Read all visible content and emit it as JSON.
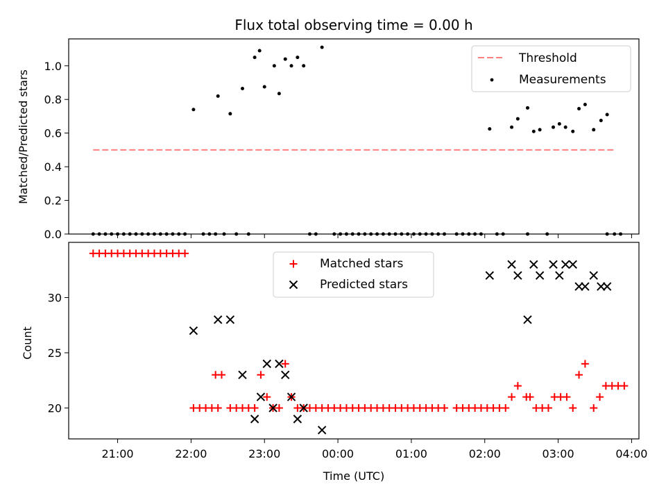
{
  "chart_data": [
    {
      "type": "scatter",
      "title": "Flux total observing time = 0.00 h",
      "ylabel": "Matched/Predicted stars",
      "xlabel": "",
      "ylim": [
        0,
        1.16
      ],
      "yticks": [
        "0.0",
        "0.2",
        "0.4",
        "0.6",
        "0.8",
        "1.0"
      ],
      "xlim": [
        "20:20",
        "04:06"
      ],
      "legend": {
        "position": "top-right",
        "entries": [
          "Threshold",
          "Measurements"
        ]
      },
      "threshold": {
        "name": "Threshold",
        "value": 0.5,
        "x_start": "20:40",
        "x_end": "03:46",
        "color": "#ff7f7f",
        "style": "dashed"
      },
      "series": [
        {
          "name": "Measurements",
          "color": "#000000",
          "marker": "dot",
          "points": [
            [
              "20:40",
              0
            ],
            [
              "20:45",
              0
            ],
            [
              "20:50",
              0
            ],
            [
              "20:55",
              0
            ],
            [
              "21:00",
              0
            ],
            [
              "21:05",
              0
            ],
            [
              "21:10",
              0
            ],
            [
              "21:15",
              0
            ],
            [
              "21:20",
              0
            ],
            [
              "21:25",
              0
            ],
            [
              "21:30",
              0
            ],
            [
              "21:35",
              0
            ],
            [
              "21:40",
              0
            ],
            [
              "21:45",
              0
            ],
            [
              "21:50",
              0
            ],
            [
              "21:55",
              0
            ],
            [
              "22:02",
              0.74
            ],
            [
              "22:10",
              0
            ],
            [
              "22:15",
              0
            ],
            [
              "22:20",
              0
            ],
            [
              "22:22",
              0.82
            ],
            [
              "22:27",
              0
            ],
            [
              "22:32",
              0.715
            ],
            [
              "22:37",
              0
            ],
            [
              "22:42",
              0.865
            ],
            [
              "22:47",
              0
            ],
            [
              "22:52",
              1.05
            ],
            [
              "22:56",
              1.09
            ],
            [
              "23:00",
              0.875
            ],
            [
              "23:08",
              1.0
            ],
            [
              "23:12",
              0.835
            ],
            [
              "23:17",
              1.04
            ],
            [
              "23:22",
              1.0
            ],
            [
              "23:27",
              1.05
            ],
            [
              "23:32",
              1.0
            ],
            [
              "23:37",
              0
            ],
            [
              "23:42",
              0
            ],
            [
              "23:47",
              1.11
            ],
            [
              "23:57",
              0
            ],
            [
              "00:02",
              0
            ],
            [
              "00:07",
              0
            ],
            [
              "00:12",
              0
            ],
            [
              "00:17",
              0
            ],
            [
              "00:22",
              0
            ],
            [
              "00:27",
              0
            ],
            [
              "00:32",
              0
            ],
            [
              "00:37",
              0
            ],
            [
              "00:42",
              0
            ],
            [
              "00:47",
              0
            ],
            [
              "00:52",
              0
            ],
            [
              "00:57",
              0
            ],
            [
              "01:02",
              0
            ],
            [
              "01:07",
              0
            ],
            [
              "01:12",
              0
            ],
            [
              "01:17",
              0
            ],
            [
              "01:22",
              0
            ],
            [
              "01:27",
              0
            ],
            [
              "01:37",
              0
            ],
            [
              "01:42",
              0
            ],
            [
              "01:47",
              0
            ],
            [
              "01:52",
              0
            ],
            [
              "01:57",
              0
            ],
            [
              "02:04",
              0.625
            ],
            [
              "02:10",
              0
            ],
            [
              "02:15",
              0
            ],
            [
              "02:22",
              0.635
            ],
            [
              "02:27",
              0.685
            ],
            [
              "02:35",
              0.75
            ],
            [
              "02:35",
              0
            ],
            [
              "02:40",
              0.61
            ],
            [
              "02:45",
              0.62
            ],
            [
              "02:51",
              0
            ],
            [
              "02:56",
              0.635
            ],
            [
              "03:01",
              0.655
            ],
            [
              "03:06",
              0.635
            ],
            [
              "03:12",
              0.61
            ],
            [
              "03:17",
              0.745
            ],
            [
              "03:22",
              0.77
            ],
            [
              "03:29",
              0.62
            ],
            [
              "03:35",
              0.675
            ],
            [
              "03:40",
              0.71
            ],
            [
              "03:40",
              0
            ],
            [
              "03:46",
              0
            ],
            [
              "03:51",
              0
            ]
          ]
        }
      ]
    },
    {
      "type": "scatter",
      "title": "",
      "ylabel": "Count",
      "xlabel": "Time (UTC)",
      "ylim": [
        17.2,
        35
      ],
      "yticks": [
        "20",
        "25",
        "30"
      ],
      "xlim": [
        "20:20",
        "04:06"
      ],
      "xticks": [
        "21:00",
        "22:00",
        "23:00",
        "00:00",
        "01:00",
        "02:00",
        "03:00",
        "04:00"
      ],
      "legend": {
        "position": "top-center",
        "entries": [
          "Matched stars",
          "Predicted stars"
        ]
      },
      "series": [
        {
          "name": "Matched stars",
          "color": "#ff0000",
          "marker": "plus",
          "points": [
            [
              "20:40",
              34
            ],
            [
              "20:45",
              34
            ],
            [
              "20:50",
              34
            ],
            [
              "20:55",
              34
            ],
            [
              "21:00",
              34
            ],
            [
              "21:05",
              34
            ],
            [
              "21:10",
              34
            ],
            [
              "21:15",
              34
            ],
            [
              "21:20",
              34
            ],
            [
              "21:25",
              34
            ],
            [
              "21:30",
              34
            ],
            [
              "21:35",
              34
            ],
            [
              "21:40",
              34
            ],
            [
              "21:45",
              34
            ],
            [
              "21:50",
              34
            ],
            [
              "21:55",
              34
            ],
            [
              "22:02",
              20
            ],
            [
              "22:07",
              20
            ],
            [
              "22:12",
              20
            ],
            [
              "22:17",
              20
            ],
            [
              "22:22",
              20
            ],
            [
              "22:20",
              23
            ],
            [
              "22:25",
              23
            ],
            [
              "22:32",
              20
            ],
            [
              "22:37",
              20
            ],
            [
              "22:42",
              20
            ],
            [
              "22:47",
              20
            ],
            [
              "22:52",
              20
            ],
            [
              "22:57",
              23
            ],
            [
              "23:02",
              21
            ],
            [
              "23:07",
              20
            ],
            [
              "23:12",
              20
            ],
            [
              "23:17",
              24
            ],
            [
              "23:22",
              21
            ],
            [
              "23:27",
              20
            ],
            [
              "23:32",
              20
            ],
            [
              "23:37",
              20
            ],
            [
              "23:42",
              20
            ],
            [
              "23:47",
              20
            ],
            [
              "23:52",
              20
            ],
            [
              "23:57",
              20
            ],
            [
              "00:02",
              20
            ],
            [
              "00:07",
              20
            ],
            [
              "00:12",
              20
            ],
            [
              "00:17",
              20
            ],
            [
              "00:22",
              20
            ],
            [
              "00:27",
              20
            ],
            [
              "00:32",
              20
            ],
            [
              "00:37",
              20
            ],
            [
              "00:42",
              20
            ],
            [
              "00:47",
              20
            ],
            [
              "00:52",
              20
            ],
            [
              "00:57",
              20
            ],
            [
              "01:02",
              20
            ],
            [
              "01:07",
              20
            ],
            [
              "01:12",
              20
            ],
            [
              "01:17",
              20
            ],
            [
              "01:22",
              20
            ],
            [
              "01:27",
              20
            ],
            [
              "01:37",
              20
            ],
            [
              "01:42",
              20
            ],
            [
              "01:47",
              20
            ],
            [
              "01:52",
              20
            ],
            [
              "01:57",
              20
            ],
            [
              "02:02",
              20
            ],
            [
              "02:07",
              20
            ],
            [
              "02:12",
              20
            ],
            [
              "02:17",
              20
            ],
            [
              "02:22",
              21
            ],
            [
              "02:27",
              22
            ],
            [
              "02:34",
              21
            ],
            [
              "02:37",
              21
            ],
            [
              "02:42",
              20
            ],
            [
              "02:47",
              20
            ],
            [
              "02:52",
              20
            ],
            [
              "02:57",
              21
            ],
            [
              "03:02",
              21
            ],
            [
              "03:07",
              21
            ],
            [
              "03:12",
              20
            ],
            [
              "03:17",
              23
            ],
            [
              "03:22",
              24
            ],
            [
              "03:29",
              20
            ],
            [
              "03:34",
              21
            ],
            [
              "03:39",
              22
            ],
            [
              "03:44",
              22
            ],
            [
              "03:49",
              22
            ],
            [
              "03:54",
              22
            ]
          ]
        },
        {
          "name": "Predicted stars",
          "color": "#000000",
          "marker": "x",
          "points": [
            [
              "22:02",
              27
            ],
            [
              "22:22",
              28
            ],
            [
              "22:32",
              28
            ],
            [
              "22:42",
              23
            ],
            [
              "22:52",
              19
            ],
            [
              "22:57",
              21
            ],
            [
              "23:02",
              24
            ],
            [
              "23:07",
              20
            ],
            [
              "23:12",
              24
            ],
            [
              "23:17",
              23
            ],
            [
              "23:22",
              21
            ],
            [
              "23:27",
              19
            ],
            [
              "23:32",
              20
            ],
            [
              "23:47",
              18
            ],
            [
              "02:04",
              32
            ],
            [
              "02:22",
              33
            ],
            [
              "02:27",
              32
            ],
            [
              "02:35",
              28
            ],
            [
              "02:40",
              33
            ],
            [
              "02:45",
              32
            ],
            [
              "02:56",
              33
            ],
            [
              "03:01",
              32
            ],
            [
              "03:06",
              33
            ],
            [
              "03:12",
              33
            ],
            [
              "03:17",
              31
            ],
            [
              "03:22",
              31
            ],
            [
              "03:29",
              32
            ],
            [
              "03:35",
              31
            ],
            [
              "03:40",
              31
            ]
          ]
        }
      ]
    }
  ]
}
